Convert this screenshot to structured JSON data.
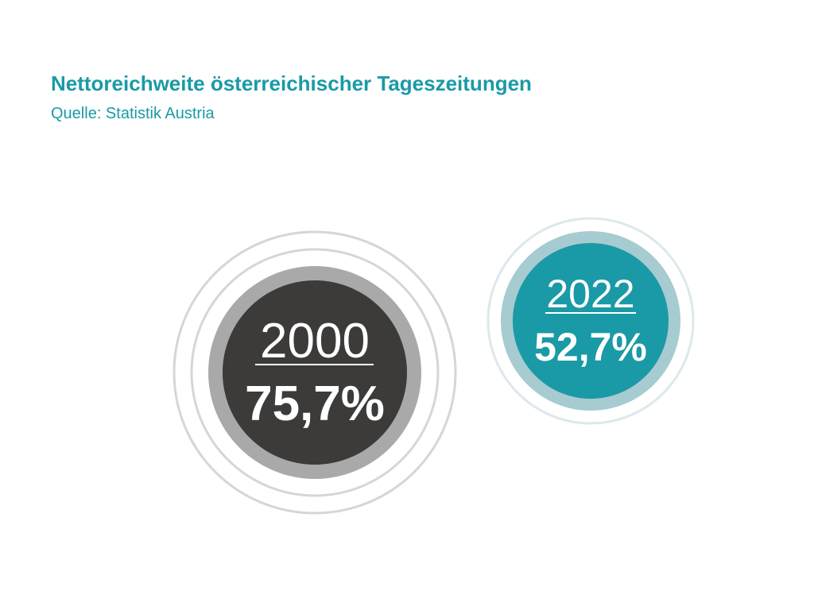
{
  "header": {
    "title": "Nettoreichweite österreichischer Tageszeitungen",
    "source": "Quelle: Statistik Austria"
  },
  "chart_data": {
    "type": "bubble",
    "unit": "%",
    "series": [
      {
        "year": "2000",
        "value": 75.7,
        "label": "75,7%"
      },
      {
        "year": "2022",
        "value": 52.7,
        "label": "52,7%"
      }
    ]
  },
  "colors": {
    "accent": "#1a9aa6",
    "dark_core": "#3c3b3a",
    "dark_ring": "#a9a9a9",
    "outer_ring_gray": "#d6d6d6",
    "teal_core": "#1a9aa6",
    "teal_ring": "#a6cbd1",
    "outer_ring_teal": "#dde8ec"
  }
}
